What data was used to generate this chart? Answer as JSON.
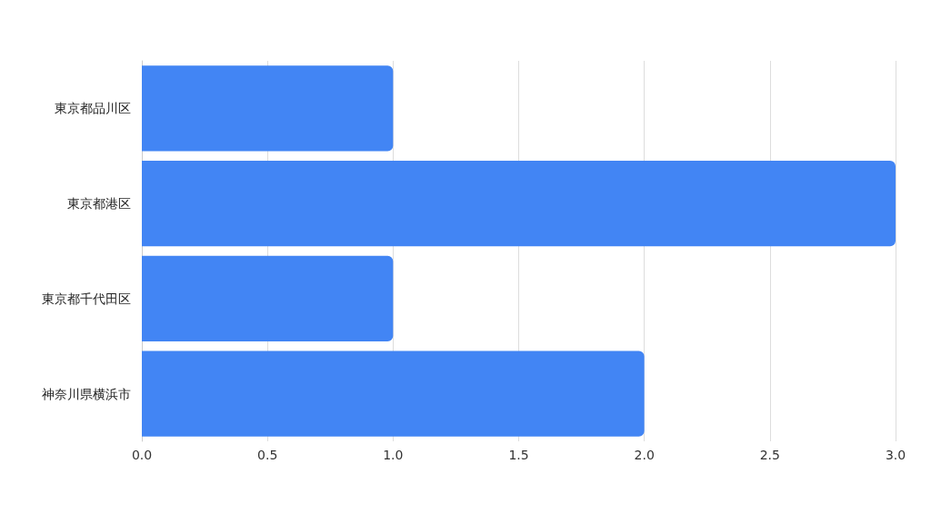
{
  "chart_data": {
    "type": "bar",
    "orientation": "horizontal",
    "categories": [
      "東京都品川区",
      "東京都港区",
      "東京都千代田区",
      "神奈川県横浜市"
    ],
    "values": [
      1,
      3,
      1,
      2
    ],
    "color": "#4285f4",
    "xlim": [
      0,
      3
    ],
    "xticks": [
      {
        "value": 0,
        "label": "0.0"
      },
      {
        "value": 0.5,
        "label": "0.5"
      },
      {
        "value": 1,
        "label": "1.0"
      },
      {
        "value": 1.5,
        "label": "1.5"
      },
      {
        "value": 2,
        "label": "2.0"
      },
      {
        "value": 2.5,
        "label": "2.5"
      },
      {
        "value": 3,
        "label": "3.0"
      }
    ],
    "grid": "x"
  }
}
